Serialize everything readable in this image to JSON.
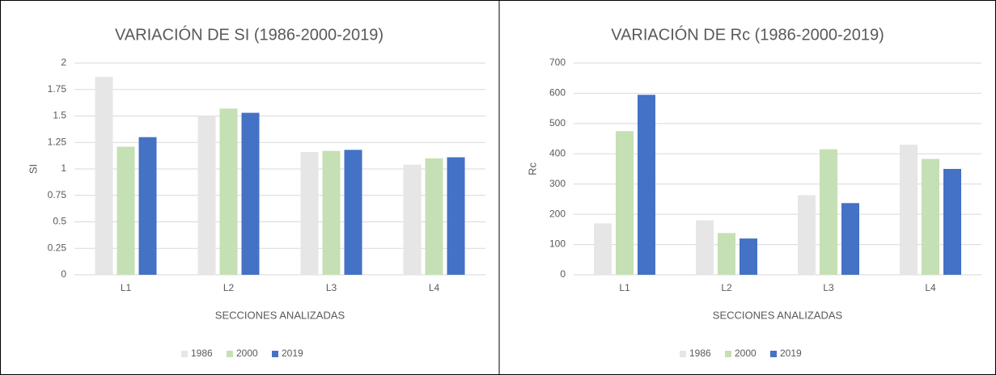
{
  "chart_data": [
    {
      "type": "bar",
      "title": "VARIACIÓN DE SI (1986-2000-2019)",
      "x_label": "SECCIONES ANALIZADAS",
      "y_label": "SI",
      "categories": [
        "L1",
        "L2",
        "L3",
        "L4"
      ],
      "series": [
        {
          "name": "1986",
          "color": "#e7e6e6",
          "values": [
            1.87,
            1.5,
            1.16,
            1.04
          ]
        },
        {
          "name": "2000",
          "color": "#c5e0b4",
          "values": [
            1.21,
            1.57,
            1.17,
            1.1
          ]
        },
        {
          "name": "2019",
          "color": "#4472c4",
          "values": [
            1.3,
            1.53,
            1.18,
            1.11
          ]
        }
      ],
      "ylim": [
        0,
        2
      ],
      "yticks": [
        0,
        0.25,
        0.5,
        0.75,
        1,
        1.25,
        1.5,
        1.75,
        2
      ],
      "grid": true,
      "legend": "bottom"
    },
    {
      "type": "bar",
      "title": "VARIACIÓN DE Rc (1986-2000-2019)",
      "x_label": "SECCIONES ANALIZADAS",
      "y_label": "Rc",
      "categories": [
        "L1",
        "L2",
        "L3",
        "L4"
      ],
      "series": [
        {
          "name": "1986",
          "color": "#e7e6e6",
          "values": [
            170,
            180,
            263,
            430
          ]
        },
        {
          "name": "2000",
          "color": "#c5e0b4",
          "values": [
            475,
            138,
            415,
            383
          ]
        },
        {
          "name": "2019",
          "color": "#4472c4",
          "values": [
            595,
            120,
            237,
            350
          ]
        }
      ],
      "ylim": [
        0,
        700
      ],
      "yticks": [
        0,
        100,
        200,
        300,
        400,
        500,
        600,
        700
      ],
      "grid": true,
      "legend": "bottom"
    }
  ]
}
